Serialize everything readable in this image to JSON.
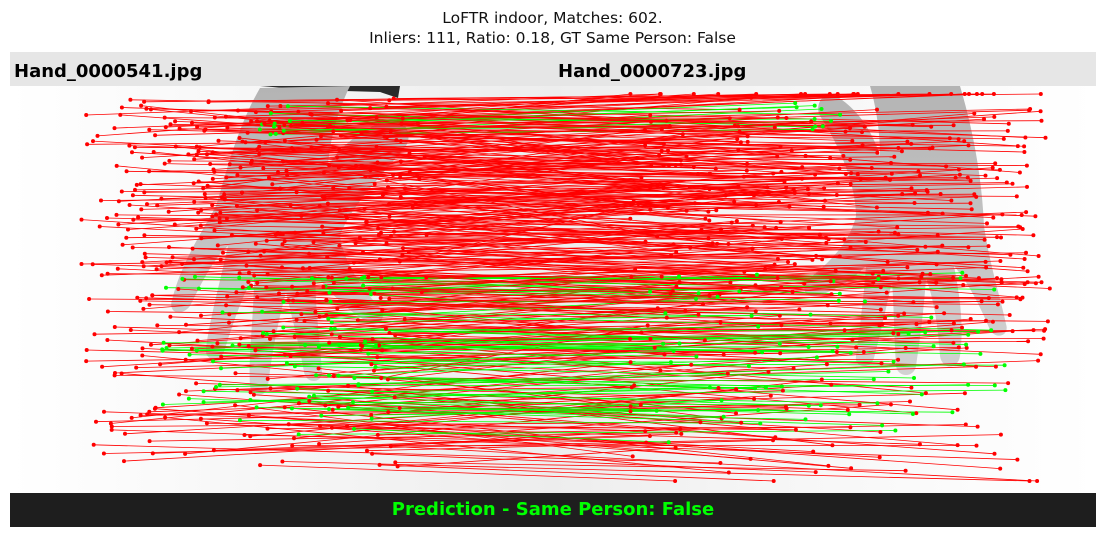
{
  "figure": {
    "title_line1": "LoFTR indoor, Matches: 602.",
    "title_line2": "Inliers: 111, Ratio: 0.18, GT Same Person: False"
  },
  "images": {
    "left_filename": "Hand_0000541.jpg",
    "right_filename": "Hand_0000723.jpg"
  },
  "prediction": {
    "text": "Prediction - Same Person: False",
    "color": "#00ff00"
  },
  "colors": {
    "outlier_match": "#ff0000",
    "inlier_match": "#00ff00",
    "header_band": "#e6e6e6",
    "footer_band": "#1e1e1e"
  }
}
